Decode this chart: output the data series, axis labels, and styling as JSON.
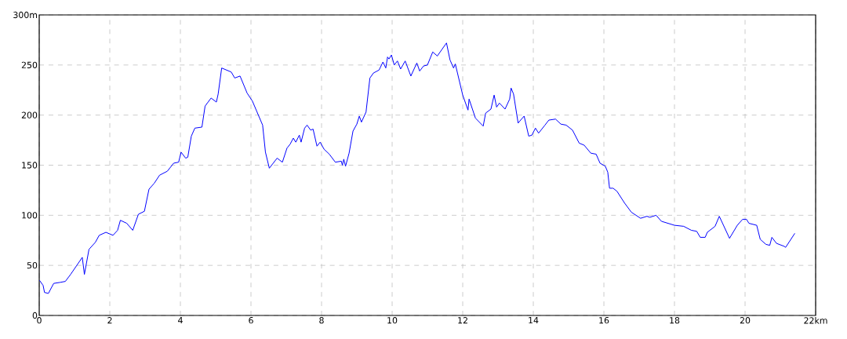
{
  "chart_data": {
    "type": "line",
    "x": [
      0.01,
      0.11,
      0.15,
      0.26,
      0.41,
      0.59,
      0.74,
      0.89,
      1.22,
      1.28,
      1.41,
      1.59,
      1.7,
      1.89,
      2.09,
      2.22,
      2.3,
      2.48,
      2.65,
      2.81,
      2.98,
      3.11,
      3.26,
      3.41,
      3.63,
      3.81,
      3.95,
      4.02,
      4.15,
      4.21,
      4.31,
      4.41,
      4.61,
      4.7,
      4.87,
      5.02,
      5.07,
      5.17,
      5.44,
      5.54,
      5.69,
      5.89,
      6.04,
      6.33,
      6.41,
      6.52,
      6.74,
      6.89,
      7.02,
      7.11,
      7.2,
      7.27,
      7.37,
      7.42,
      7.52,
      7.59,
      7.69,
      7.76,
      7.87,
      7.96,
      8.07,
      8.22,
      8.39,
      8.56,
      8.59,
      8.63,
      8.68,
      8.78,
      8.89,
      9.0,
      9.07,
      9.13,
      9.26,
      9.37,
      9.47,
      9.63,
      9.74,
      9.82,
      9.87,
      9.91,
      9.98,
      10.06,
      10.15,
      10.24,
      10.37,
      10.53,
      10.7,
      10.78,
      10.89,
      11.0,
      11.15,
      11.28,
      11.54,
      11.64,
      11.74,
      11.79,
      12.0,
      12.15,
      12.18,
      12.36,
      12.58,
      12.65,
      12.8,
      12.89,
      12.96,
      13.04,
      13.2,
      13.33,
      13.37,
      13.44,
      13.57,
      13.64,
      13.74,
      13.87,
      13.96,
      14.06,
      14.15,
      14.33,
      14.44,
      14.63,
      14.78,
      14.93,
      15.11,
      15.3,
      15.44,
      15.63,
      15.78,
      15.89,
      16.04,
      16.11,
      16.16,
      16.26,
      16.37,
      16.59,
      16.78,
      17.04,
      17.22,
      17.3,
      17.48,
      17.63,
      18.0,
      18.26,
      18.48,
      18.63,
      18.73,
      18.87,
      18.93,
      19.15,
      19.27,
      19.56,
      19.78,
      19.93,
      20.04,
      20.11,
      20.33,
      20.43,
      20.59,
      20.7,
      20.76,
      20.89,
      21.11,
      21.15,
      21.41
    ],
    "values": [
      35,
      30,
      23,
      22,
      32,
      33,
      34,
      41,
      58,
      41,
      66,
      73,
      80,
      83,
      80,
      85,
      95,
      92,
      85,
      101,
      104,
      126,
      132,
      140,
      144,
      152,
      153,
      163,
      157,
      158,
      179,
      187,
      188,
      209,
      217,
      213,
      221,
      247,
      243,
      237,
      239,
      222,
      214,
      190,
      163,
      147,
      157,
      153,
      167,
      171,
      177,
      173,
      180,
      173,
      187,
      190,
      185,
      186,
      169,
      173,
      166,
      161,
      153,
      154,
      150,
      156,
      149,
      162,
      184,
      191,
      199,
      193,
      203,
      237,
      242,
      245,
      253,
      247,
      258,
      256,
      260,
      250,
      254,
      246,
      254,
      239,
      252,
      244,
      249,
      250,
      263,
      259,
      272,
      255,
      247,
      251,
      220,
      205,
      216,
      197,
      189,
      202,
      206,
      220,
      208,
      212,
      206,
      216,
      227,
      221,
      192,
      195,
      199,
      179,
      180,
      187,
      182,
      190,
      195,
      196,
      191,
      190,
      185,
      172,
      170,
      162,
      161,
      152,
      149,
      143,
      127,
      127,
      124,
      112,
      103,
      97,
      99,
      98,
      100,
      94,
      90,
      89,
      85,
      84,
      78,
      78,
      83,
      89,
      99,
      77,
      90,
      96,
      96,
      92,
      90,
      76,
      71,
      70,
      78,
      72,
      69,
      68,
      82
    ],
    "color": "#0000ff",
    "xlim": [
      0,
      22
    ],
    "ylim": [
      0,
      300
    ],
    "xticks": [
      0,
      2,
      4,
      6,
      8,
      10,
      12,
      14,
      16,
      18,
      20,
      {
        "value": 22,
        "label": "22km"
      }
    ],
    "yticks": [
      0,
      50,
      100,
      150,
      200,
      250,
      {
        "value": 300,
        "label": "300m"
      }
    ],
    "grid": true
  }
}
